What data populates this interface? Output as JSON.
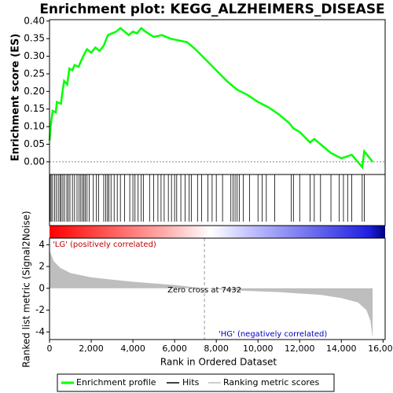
{
  "chart_data": [
    {
      "type": "line",
      "title": "Enrichment plot: KEGG_ALZHEIMERS_DISEASE",
      "ylabel": "Enrichment score (ES)",
      "x": [
        0,
        50,
        150,
        300,
        350,
        550,
        600,
        700,
        850,
        950,
        1100,
        1200,
        1400,
        1500,
        1700,
        1800,
        2000,
        2200,
        2400,
        2600,
        2800,
        3000,
        3200,
        3400,
        3600,
        3800,
        4000,
        4200,
        4400,
        4600,
        5000,
        5400,
        5800,
        6200,
        6600,
        7000,
        7500,
        8000,
        8500,
        9000,
        9500,
        10000,
        10500,
        11000,
        11500,
        11700,
        12000,
        12500,
        12700,
        13000,
        13500,
        14000,
        14500,
        15000,
        15100,
        15500
      ],
      "series": [
        {
          "name": "Enrichment profile",
          "color": "#00ff00",
          "values": [
            0.06,
            0.1,
            0.145,
            0.14,
            0.17,
            0.165,
            0.19,
            0.23,
            0.22,
            0.265,
            0.26,
            0.275,
            0.27,
            0.285,
            0.31,
            0.32,
            0.31,
            0.325,
            0.315,
            0.33,
            0.36,
            0.365,
            0.37,
            0.38,
            0.37,
            0.36,
            0.37,
            0.365,
            0.38,
            0.37,
            0.355,
            0.36,
            0.35,
            0.345,
            0.34,
            0.32,
            0.29,
            0.26,
            0.23,
            0.205,
            0.19,
            0.17,
            0.155,
            0.135,
            0.11,
            0.095,
            0.085,
            0.055,
            0.065,
            0.05,
            0.025,
            0.01,
            0.02,
            -0.015,
            0.03,
            0.0
          ]
        }
      ],
      "xlim": [
        0,
        16100
      ],
      "ylim": [
        -0.036,
        0.404
      ],
      "yticks": [
        {
          "value": 0,
          "label": "0.00"
        },
        {
          "value": 0.05,
          "label": "0.05"
        },
        {
          "value": 0.1,
          "label": "0.10"
        },
        {
          "value": 0.15,
          "label": "0.15"
        },
        {
          "value": 0.2,
          "label": "0.20"
        },
        {
          "value": 0.25,
          "label": "0.25"
        },
        {
          "value": 0.3,
          "label": "0.30"
        },
        {
          "value": 0.35,
          "label": "0.35"
        },
        {
          "value": 0.4,
          "label": "0.40"
        }
      ]
    },
    {
      "type": "rug",
      "name": "Hits",
      "color": "#000000",
      "xlim": [
        0,
        16100
      ],
      "x": [
        30,
        80,
        150,
        250,
        330,
        420,
        500,
        560,
        640,
        720,
        830,
        900,
        980,
        1100,
        1200,
        1320,
        1420,
        1500,
        1580,
        1650,
        1720,
        1800,
        1900,
        2100,
        2250,
        2350,
        2600,
        2700,
        2780,
        2850,
        2950,
        3100,
        3250,
        3400,
        3600,
        3850,
        4000,
        4100,
        4250,
        4400,
        4500,
        4800,
        5000,
        5200,
        5350,
        5500,
        5700,
        5850,
        6000,
        6100,
        6300,
        6500,
        6700,
        6800,
        7100,
        7300,
        7600,
        7800,
        8000,
        8300,
        8700,
        8800,
        8900,
        9000,
        9100,
        9300,
        9600,
        10000,
        10200,
        10400,
        10800,
        11600,
        11700,
        12000,
        12500,
        12700,
        13000,
        13500,
        13900,
        14100,
        14300,
        14500,
        15000,
        15100
      ]
    },
    {
      "type": "area",
      "name": "Ranking metric scores",
      "color": "#bebebe",
      "ylabel": "Ranked list metric (Signal2Noise)",
      "xlabel": "Rank in Ordered Dataset",
      "x": [
        0,
        200,
        500,
        1000,
        2000,
        4000,
        6000,
        7432,
        9000,
        11000,
        13000,
        14000,
        14800,
        15200,
        15400,
        15500
      ],
      "values": [
        3.5,
        2.5,
        1.9,
        1.4,
        1.0,
        0.6,
        0.3,
        0,
        -0.2,
        -0.35,
        -0.6,
        -0.9,
        -1.3,
        -2.0,
        -3.0,
        -4.6
      ],
      "xlim": [
        0,
        16100
      ],
      "ylim": [
        -4.7,
        4.6
      ],
      "yticks": [
        -4,
        -2,
        0,
        2,
        4
      ],
      "xticks": [
        0,
        {
          "value": 2000,
          "label": "2,000"
        },
        {
          "value": 4000,
          "label": "4,000"
        },
        {
          "value": 6000,
          "label": "6,000"
        },
        {
          "value": 8000,
          "label": "8,000"
        },
        {
          "value": 10000,
          "label": "10,000"
        },
        {
          "value": 12000,
          "label": "12,000"
        },
        {
          "value": 14000,
          "label": "14,000"
        },
        {
          "value": 16000,
          "label": "16,000"
        }
      ],
      "annotations": [
        "'LG' (positively correlated)",
        "'HG' (negatively correlated)"
      ],
      "zero_cross": 7432,
      "zero_cross_label": "Zero cross at 7432"
    }
  ]
}
